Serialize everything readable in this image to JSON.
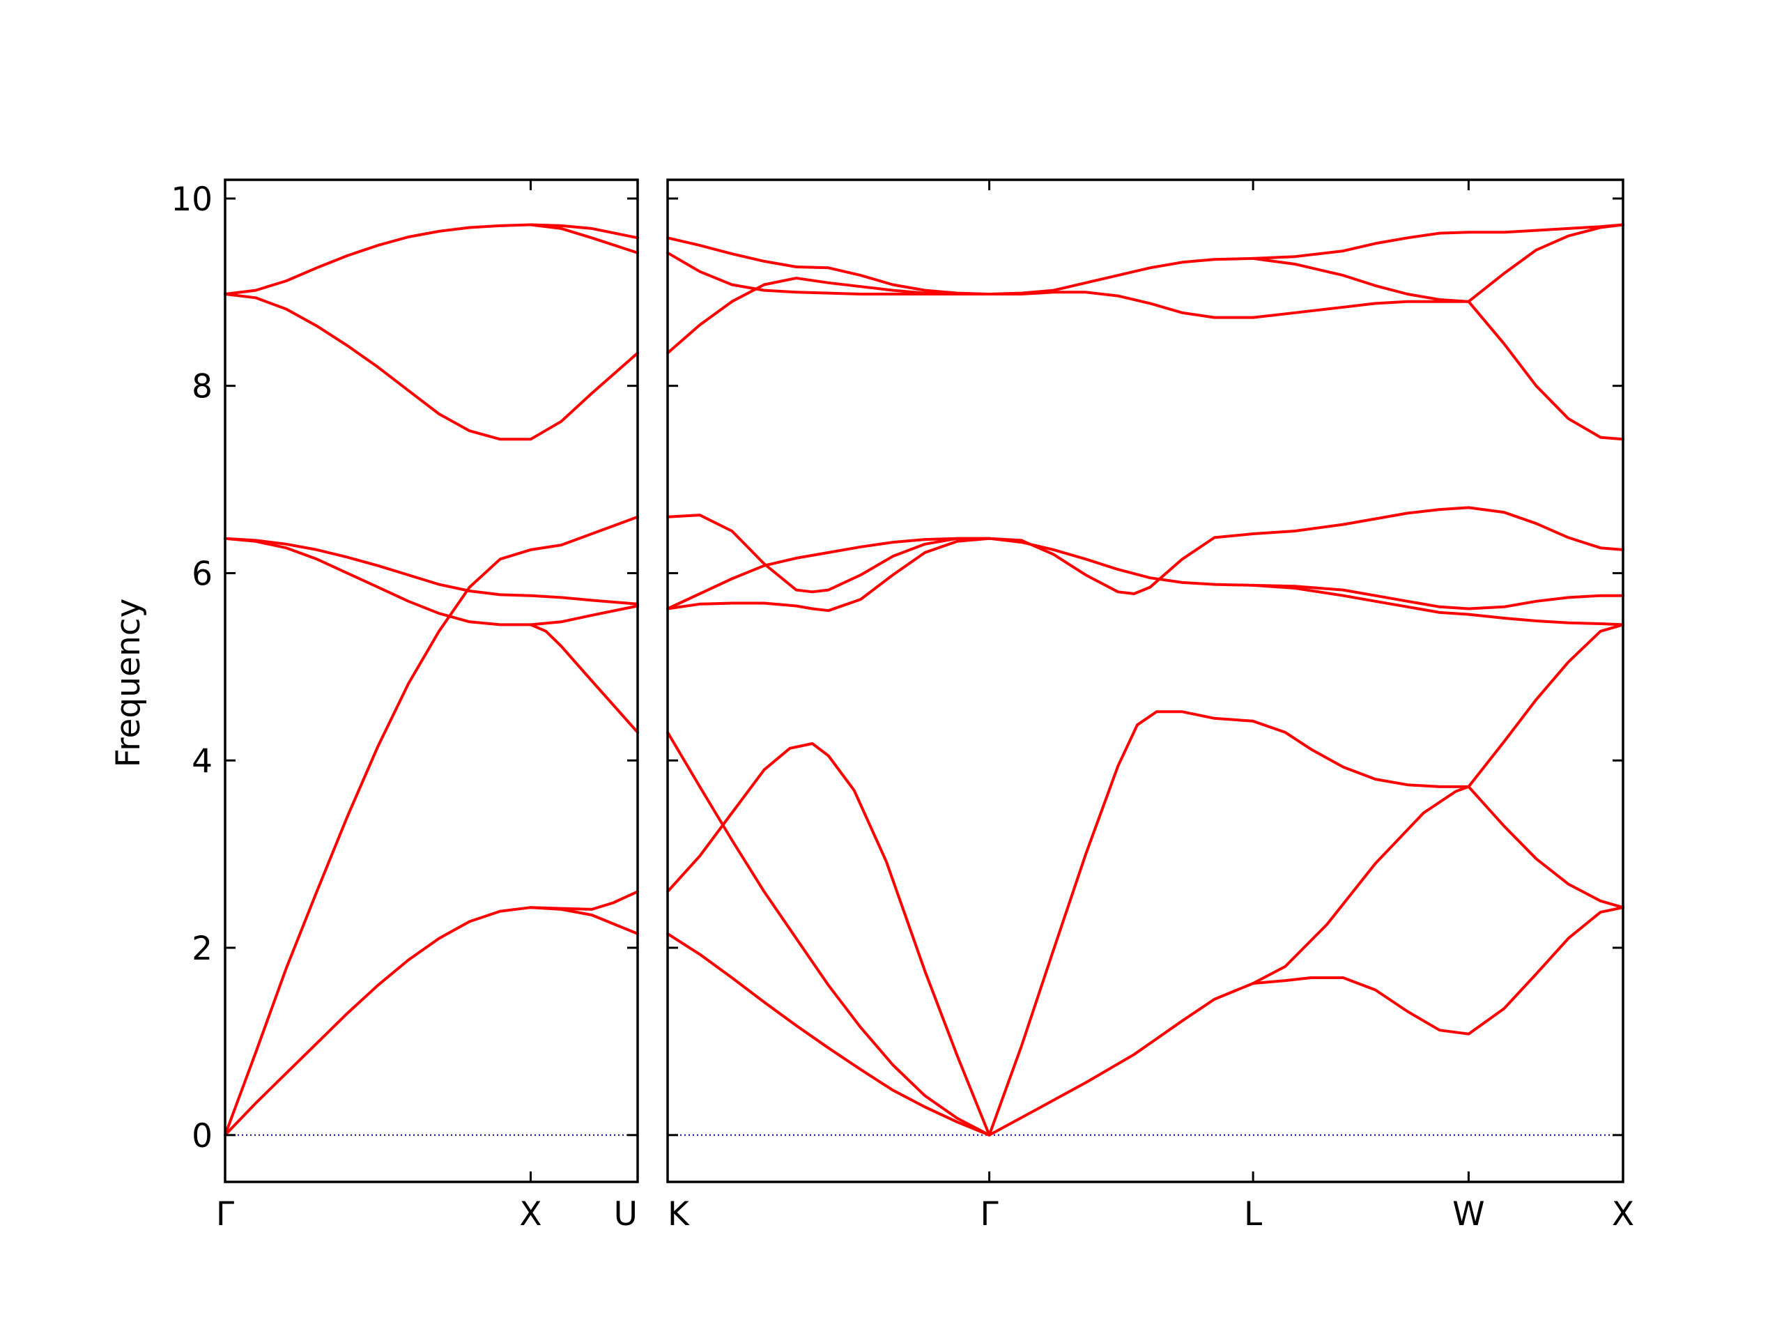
{
  "chart_data": {
    "type": "line",
    "title": "",
    "ylabel": "Frequency",
    "xlabel": "",
    "ylim": [
      -0.5,
      10.2
    ],
    "yticks": [
      0,
      2,
      4,
      6,
      8,
      10
    ],
    "grid": false,
    "colors": {
      "band": "#ff0000",
      "zero": "#0000aa",
      "frame": "#000000"
    },
    "panels": [
      {
        "name": "Γ-X-U",
        "xlim": [
          0,
          1.35
        ],
        "ticks": [
          {
            "x": 0,
            "label": "Γ"
          },
          {
            "x": 1.0,
            "label": "X"
          },
          {
            "x": 1.35,
            "label": "U"
          }
        ],
        "series": [
          {
            "x": [
              0,
              0.1,
              0.2,
              0.3,
              0.4,
              0.5,
              0.6,
              0.7,
              0.8,
              0.9,
              1.0,
              1.1,
              1.2,
              1.35
            ],
            "values": [
              0,
              0.34,
              0.66,
              0.98,
              1.3,
              1.6,
              1.87,
              2.1,
              2.28,
              2.39,
              2.43,
              2.41,
              2.35,
              2.15
            ]
          },
          {
            "x": [
              1.0,
              1.1,
              1.2,
              1.27,
              1.35
            ],
            "values": [
              2.43,
              2.42,
              2.41,
              2.48,
              2.6
            ]
          },
          {
            "x": [
              0,
              0.1,
              0.2,
              0.3,
              0.4,
              0.5,
              0.6,
              0.7,
              0.8,
              0.9,
              1.0
            ],
            "values": [
              0,
              0.88,
              1.78,
              2.6,
              3.4,
              4.15,
              4.82,
              5.38,
              5.85,
              6.15,
              6.25
            ]
          },
          {
            "x": [
              1.0,
              1.1,
              1.2,
              1.35
            ],
            "values": [
              6.25,
              6.3,
              6.42,
              6.6
            ]
          },
          {
            "x": [
              0,
              0.1,
              0.2,
              0.3,
              0.4,
              0.5,
              0.6,
              0.7,
              0.8,
              0.9,
              1.0,
              1.1,
              1.2,
              1.35
            ],
            "values": [
              6.37,
              6.34,
              6.27,
              6.15,
              6.0,
              5.85,
              5.7,
              5.57,
              5.48,
              5.45,
              5.45,
              5.48,
              5.55,
              5.65
            ]
          },
          {
            "x": [
              0,
              0.1,
              0.2,
              0.3,
              0.4,
              0.5,
              0.6,
              0.7,
              0.8,
              0.9,
              1.0,
              1.1,
              1.2,
              1.35
            ],
            "values": [
              6.37,
              6.35,
              6.31,
              6.25,
              6.17,
              6.08,
              5.98,
              5.88,
              5.81,
              5.77,
              5.76,
              5.74,
              5.71,
              5.67
            ]
          },
          {
            "x": [
              1.0,
              1.05,
              1.1,
              1.2,
              1.35
            ],
            "values": [
              5.45,
              5.38,
              5.22,
              4.85,
              4.3
            ]
          },
          {
            "x": [
              0,
              0.1,
              0.2,
              0.3,
              0.4,
              0.5,
              0.6,
              0.7,
              0.8,
              0.9,
              1.0,
              1.1,
              1.2,
              1.35
            ],
            "values": [
              8.98,
              8.94,
              8.82,
              8.64,
              8.43,
              8.2,
              7.95,
              7.7,
              7.52,
              7.43,
              7.43,
              7.62,
              7.92,
              8.35
            ]
          },
          {
            "x": [
              0,
              0.1,
              0.2,
              0.3,
              0.4,
              0.5,
              0.6,
              0.7,
              0.8,
              0.9,
              1.0,
              1.1,
              1.2,
              1.35
            ],
            "values": [
              8.98,
              9.02,
              9.12,
              9.26,
              9.39,
              9.5,
              9.59,
              9.65,
              9.69,
              9.71,
              9.72,
              9.71,
              9.68,
              9.58
            ]
          },
          {
            "x": [
              1.0,
              1.1,
              1.2,
              1.35
            ],
            "values": [
              9.72,
              9.68,
              9.58,
              9.42
            ]
          }
        ]
      },
      {
        "name": "K-Γ-L-W-X",
        "xlim": [
          0,
          2.97
        ],
        "ticks": [
          {
            "x": 0,
            "label": "K"
          },
          {
            "x": 1.0,
            "label": "Γ"
          },
          {
            "x": 1.82,
            "label": "L"
          },
          {
            "x": 2.49,
            "label": "W"
          },
          {
            "x": 2.97,
            "label": "X"
          }
        ],
        "series": [
          {
            "x": [
              0,
              0.1,
              0.2,
              0.3,
              0.4,
              0.5,
              0.6,
              0.7,
              0.8,
              0.9,
              1.0,
              1.15,
              1.3,
              1.45,
              1.6,
              1.7,
              1.82
            ],
            "values": [
              2.15,
              1.93,
              1.68,
              1.42,
              1.17,
              0.93,
              0.7,
              0.48,
              0.3,
              0.14,
              0,
              0.28,
              0.56,
              0.86,
              1.22,
              1.45,
              1.62
            ]
          },
          {
            "x": [
              1.82,
              1.92,
              2.0,
              2.1,
              2.2,
              2.3,
              2.4,
              2.49,
              2.6,
              2.7,
              2.8,
              2.9,
              2.97
            ],
            "values": [
              1.62,
              1.65,
              1.68,
              1.68,
              1.55,
              1.32,
              1.12,
              1.08,
              1.35,
              1.72,
              2.1,
              2.38,
              2.43
            ]
          },
          {
            "x": [
              1.82,
              1.92,
              2.05,
              2.2,
              2.35,
              2.45,
              2.49
            ],
            "values": [
              1.62,
              1.8,
              2.25,
              2.9,
              3.44,
              3.67,
              3.72
            ]
          },
          {
            "x": [
              2.49,
              2.6,
              2.7,
              2.8,
              2.9,
              2.97
            ],
            "values": [
              3.72,
              3.3,
              2.95,
              2.68,
              2.5,
              2.43
            ]
          },
          {
            "x": [
              0,
              0.1,
              0.2,
              0.3,
              0.4,
              0.5,
              0.6,
              0.7,
              0.8,
              0.9,
              1.0
            ],
            "values": [
              4.3,
              3.72,
              3.15,
              2.6,
              2.1,
              1.6,
              1.15,
              0.75,
              0.42,
              0.18,
              0
            ]
          },
          {
            "x": [
              0,
              0.1,
              0.2,
              0.3,
              0.38,
              0.45,
              0.5,
              0.58,
              0.68,
              0.8,
              0.9,
              1.0
            ],
            "values": [
              2.6,
              2.98,
              3.44,
              3.9,
              4.13,
              4.18,
              4.05,
              3.68,
              2.92,
              1.75,
              0.85,
              0
            ]
          },
          {
            "x": [
              1.0,
              1.1,
              1.2,
              1.3,
              1.4,
              1.46,
              1.52,
              1.6,
              1.7,
              1.82,
              1.92,
              2.0,
              2.1,
              2.2,
              2.3,
              2.4,
              2.49
            ],
            "values": [
              0,
              0.95,
              1.98,
              3.0,
              3.94,
              4.38,
              4.52,
              4.52,
              4.45,
              4.42,
              4.3,
              4.12,
              3.93,
              3.8,
              3.74,
              3.72,
              3.72
            ]
          },
          {
            "x": [
              2.49,
              2.6,
              2.7,
              2.8,
              2.9,
              2.97
            ],
            "values": [
              3.72,
              4.2,
              4.65,
              5.05,
              5.38,
              5.45
            ]
          },
          {
            "x": [
              0,
              0.1,
              0.2,
              0.3,
              0.4,
              0.45,
              0.5,
              0.6,
              0.7,
              0.8,
              0.9,
              1.0
            ],
            "values": [
              5.62,
              5.67,
              5.68,
              5.68,
              5.65,
              5.62,
              5.6,
              5.72,
              5.98,
              6.22,
              6.34,
              6.37
            ]
          },
          {
            "x": [
              0,
              0.1,
              0.2,
              0.3,
              0.4,
              0.5,
              0.6,
              0.7,
              0.8,
              0.9,
              1.0
            ],
            "values": [
              5.62,
              5.78,
              5.94,
              6.08,
              6.16,
              6.22,
              6.28,
              6.33,
              6.36,
              6.37,
              6.37
            ]
          },
          {
            "x": [
              0,
              0.1,
              0.2,
              0.3,
              0.4,
              0.45,
              0.5,
              0.6,
              0.7,
              0.8,
              0.9,
              1.0
            ],
            "values": [
              6.6,
              6.62,
              6.45,
              6.1,
              5.82,
              5.8,
              5.82,
              5.98,
              6.18,
              6.31,
              6.37,
              6.37
            ]
          },
          {
            "x": [
              1.0,
              1.1,
              1.2,
              1.3,
              1.4,
              1.5,
              1.6,
              1.7,
              1.82
            ],
            "values": [
              6.37,
              6.33,
              6.25,
              6.15,
              6.04,
              5.95,
              5.9,
              5.88,
              5.87
            ]
          },
          {
            "x": [
              1.0,
              1.1,
              1.2,
              1.3,
              1.4,
              1.45,
              1.5,
              1.6,
              1.7,
              1.82
            ],
            "values": [
              6.37,
              6.35,
              6.2,
              5.98,
              5.8,
              5.78,
              5.85,
              6.15,
              6.38,
              6.42
            ]
          },
          {
            "x": [
              1.82,
              1.95,
              2.1,
              2.2,
              2.3,
              2.4,
              2.49,
              2.6,
              2.7,
              2.8,
              2.9,
              2.97
            ],
            "values": [
              6.42,
              6.45,
              6.52,
              6.58,
              6.64,
              6.68,
              6.7,
              6.65,
              6.53,
              6.38,
              6.27,
              6.25
            ]
          },
          {
            "x": [
              1.82,
              1.95,
              2.1,
              2.2,
              2.3,
              2.4,
              2.49,
              2.6,
              2.7,
              2.8,
              2.9,
              2.97
            ],
            "values": [
              5.87,
              5.86,
              5.82,
              5.76,
              5.7,
              5.64,
              5.62,
              5.64,
              5.7,
              5.74,
              5.76,
              5.76
            ]
          },
          {
            "x": [
              1.82,
              1.95,
              2.1,
              2.2,
              2.3,
              2.4,
              2.49,
              2.6,
              2.7,
              2.8,
              2.9,
              2.97
            ],
            "values": [
              5.87,
              5.84,
              5.76,
              5.7,
              5.64,
              5.58,
              5.56,
              5.52,
              5.49,
              5.47,
              5.46,
              5.45
            ]
          },
          {
            "x": [
              0,
              0.1,
              0.2,
              0.3,
              0.4,
              0.5,
              0.6,
              0.7,
              0.8,
              0.9,
              1.0
            ],
            "values": [
              8.35,
              8.65,
              8.9,
              9.08,
              9.15,
              9.1,
              9.06,
              9.02,
              8.99,
              8.98,
              8.98
            ]
          },
          {
            "x": [
              0,
              0.1,
              0.2,
              0.3,
              0.4,
              0.5,
              0.6,
              0.7,
              0.8,
              0.9,
              1.0
            ],
            "values": [
              9.42,
              9.22,
              9.08,
              9.02,
              9.0,
              8.99,
              8.98,
              8.98,
              8.98,
              8.98,
              8.98
            ]
          },
          {
            "x": [
              0,
              0.1,
              0.2,
              0.3,
              0.4,
              0.5,
              0.6,
              0.7,
              0.8,
              0.9,
              1.0
            ],
            "values": [
              9.58,
              9.5,
              9.41,
              9.33,
              9.27,
              9.26,
              9.18,
              9.08,
              9.02,
              8.99,
              8.98
            ]
          },
          {
            "x": [
              1.0,
              1.1,
              1.2,
              1.3,
              1.4,
              1.5,
              1.6,
              1.7,
              1.82
            ],
            "values": [
              8.98,
              8.98,
              9.0,
              9.0,
              8.96,
              8.88,
              8.78,
              8.73,
              8.73
            ]
          },
          {
            "x": [
              1.82,
              1.95,
              2.1,
              2.2,
              2.3,
              2.4,
              2.49
            ],
            "values": [
              8.73,
              8.78,
              8.84,
              8.88,
              8.9,
              8.9,
              8.9
            ]
          },
          {
            "x": [
              1.0,
              1.1,
              1.2,
              1.3,
              1.4,
              1.5,
              1.6,
              1.7,
              1.82
            ],
            "values": [
              8.98,
              8.99,
              9.02,
              9.1,
              9.18,
              9.26,
              9.32,
              9.35,
              9.36
            ]
          },
          {
            "x": [
              1.82,
              1.95,
              2.1,
              2.2,
              2.3,
              2.4,
              2.49
            ],
            "values": [
              9.36,
              9.3,
              9.18,
              9.07,
              8.98,
              8.92,
              8.9
            ]
          },
          {
            "x": [
              1.82,
              1.95,
              2.1,
              2.2,
              2.3,
              2.4,
              2.49
            ],
            "values": [
              9.36,
              9.38,
              9.44,
              9.52,
              9.58,
              9.63,
              9.64
            ]
          },
          {
            "x": [
              2.49,
              2.6,
              2.7,
              2.8,
              2.9,
              2.97
            ],
            "values": [
              9.64,
              9.64,
              9.66,
              9.68,
              9.7,
              9.72
            ]
          },
          {
            "x": [
              2.49,
              2.6,
              2.7,
              2.8,
              2.9,
              2.97
            ],
            "values": [
              8.9,
              9.2,
              9.45,
              9.6,
              9.69,
              9.72
            ]
          },
          {
            "x": [
              2.49,
              2.6,
              2.7,
              2.8,
              2.9,
              2.97
            ],
            "values": [
              8.9,
              8.45,
              8.0,
              7.65,
              7.45,
              7.43
            ]
          }
        ]
      }
    ]
  }
}
